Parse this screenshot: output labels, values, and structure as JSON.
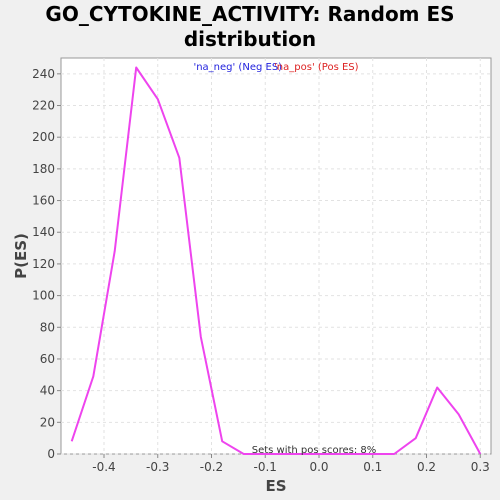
{
  "chart_data": {
    "type": "line",
    "title": "GO_CYTOKINE_ACTIVITY: Random ES\ndistribution",
    "xlabel": "ES",
    "ylabel": "P(ES)",
    "xlim": [
      -0.48,
      0.32
    ],
    "ylim": [
      0,
      250
    ],
    "x_ticks": [
      -0.4,
      -0.3,
      -0.2,
      -0.1,
      0.0,
      0.1,
      0.2,
      0.3
    ],
    "x_tick_labels": [
      "-0.4",
      "-0.3",
      "-0.2",
      "-0.1",
      "0.0",
      "0.1",
      "0.2",
      "0.3"
    ],
    "y_ticks": [
      0,
      20,
      40,
      60,
      80,
      100,
      120,
      140,
      160,
      180,
      200,
      220,
      240
    ],
    "y_tick_labels": [
      "0",
      "20",
      "40",
      "60",
      "80",
      "100",
      "120",
      "140",
      "160",
      "180",
      "200",
      "220",
      "240"
    ],
    "grid": true,
    "legend": {
      "placement": "top-center",
      "entries": [
        {
          "label": "'na_neg' (Neg ES)",
          "color": "#2222dd"
        },
        {
          "label": "'na_pos' (Pos ES)",
          "color": "#dd2222"
        }
      ]
    },
    "annotation": "Sets with pos scores: 8%",
    "series": [
      {
        "color": "#ee44ee",
        "x": [
          -0.46,
          -0.42,
          -0.38,
          -0.34,
          -0.3,
          -0.26,
          -0.22,
          -0.18,
          -0.14,
          -0.1,
          -0.06,
          -0.02,
          0.02,
          0.06,
          0.1,
          0.14,
          0.18,
          0.22,
          0.26,
          0.3
        ],
        "y": [
          8,
          49,
          128,
          244,
          224,
          187,
          74,
          8,
          0,
          0,
          0,
          0,
          0,
          0,
          0,
          0,
          10,
          42,
          25,
          0
        ]
      }
    ]
  }
}
